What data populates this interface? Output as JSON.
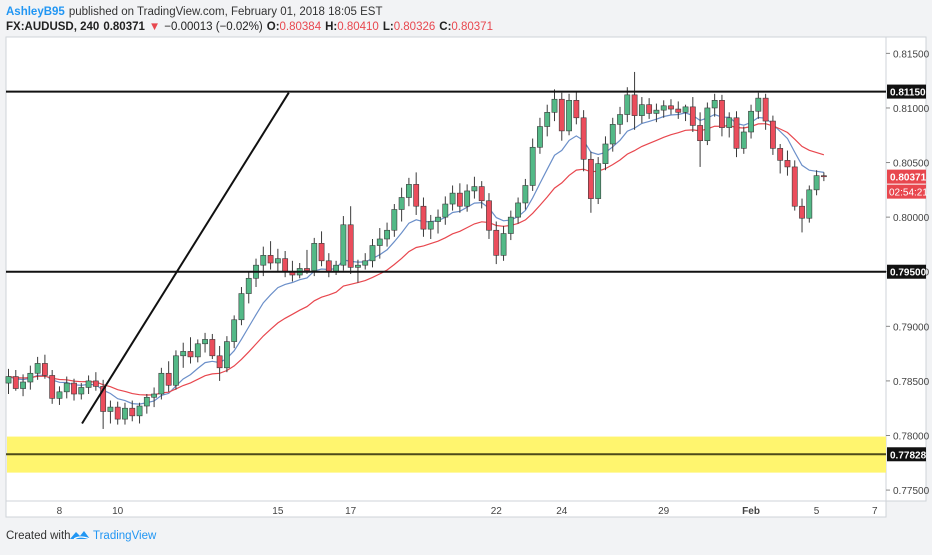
{
  "header": {
    "author": "AshleyB95",
    "published_text": "published on TradingView.com, February 01, 2018 18:05 EST",
    "symbol": "FX:AUDUSD, 240",
    "last_price": "0.80371",
    "arrow": "▼",
    "change": "−0.00013 (−0.02%)",
    "o_label": "O:",
    "o_value": "0.80384",
    "h_label": "H:",
    "h_value": "0.80410",
    "l_label": "L:",
    "l_value": "0.80326",
    "c_label": "C:",
    "c_value": "0.80371"
  },
  "footer": {
    "created_with": "Created with",
    "brand": "TradingView"
  },
  "price_labels": {
    "resistance": "0.81150",
    "current": "0.80371",
    "countdown": "02:54:21",
    "support": "0.79500",
    "zone": "0.77828"
  },
  "colors": {
    "up": "#53b987",
    "down": "#eb4d5c",
    "ma_fast": "#6b8fc9",
    "ma_slow": "#e8474e",
    "zone": "#fff56e",
    "brand": "#2196f3",
    "author": "#2196f3"
  },
  "chart_data": {
    "type": "candlestick",
    "symbol": "FX:AUDUSD",
    "interval": "240",
    "ylim": [
      0.774,
      0.8165
    ],
    "y_ticks": [
      "0.81500",
      "0.81000",
      "0.80500",
      "0.80000",
      "0.79500",
      "0.79000",
      "0.78500",
      "0.78000",
      "0.77500"
    ],
    "x_ticks": [
      "8",
      "10",
      "15",
      "17",
      "22",
      "24",
      "29",
      "Feb",
      "5",
      "7"
    ],
    "horizontal_levels": [
      0.8115,
      0.795,
      0.77828
    ],
    "demand_zone": [
      0.7766,
      0.7799
    ],
    "trendline": [
      {
        "x": 10.1,
        "y": 0.7811
      },
      {
        "x": 38.5,
        "y": 0.8114
      }
    ],
    "ohlc": [
      [
        0.7848,
        0.7861,
        0.7838,
        0.7854
      ],
      [
        0.7854,
        0.786,
        0.7841,
        0.7843
      ],
      [
        0.7843,
        0.7856,
        0.7836,
        0.7849
      ],
      [
        0.7849,
        0.7864,
        0.7842,
        0.7857
      ],
      [
        0.7857,
        0.7872,
        0.7851,
        0.7866
      ],
      [
        0.7866,
        0.7874,
        0.7852,
        0.7855
      ],
      [
        0.7855,
        0.786,
        0.7829,
        0.7834
      ],
      [
        0.7834,
        0.7845,
        0.7828,
        0.784
      ],
      [
        0.784,
        0.7854,
        0.7834,
        0.7848
      ],
      [
        0.7848,
        0.7852,
        0.7832,
        0.7838
      ],
      [
        0.7838,
        0.7848,
        0.7833,
        0.7844
      ],
      [
        0.7844,
        0.7855,
        0.7838,
        0.785
      ],
      [
        0.785,
        0.7858,
        0.7841,
        0.7845
      ],
      [
        0.7845,
        0.7851,
        0.7806,
        0.7822
      ],
      [
        0.7822,
        0.7832,
        0.7811,
        0.7826
      ],
      [
        0.7826,
        0.7831,
        0.781,
        0.7815
      ],
      [
        0.7815,
        0.783,
        0.781,
        0.7825
      ],
      [
        0.7825,
        0.7832,
        0.7813,
        0.7818
      ],
      [
        0.7818,
        0.783,
        0.7811,
        0.7827
      ],
      [
        0.7827,
        0.7838,
        0.782,
        0.7835
      ],
      [
        0.7835,
        0.7844,
        0.7826,
        0.7838
      ],
      [
        0.7838,
        0.7862,
        0.7833,
        0.7857
      ],
      [
        0.7857,
        0.7868,
        0.784,
        0.7846
      ],
      [
        0.7846,
        0.7878,
        0.7842,
        0.7873
      ],
      [
        0.7873,
        0.7885,
        0.7862,
        0.7877
      ],
      [
        0.7877,
        0.789,
        0.7866,
        0.7872
      ],
      [
        0.7872,
        0.7888,
        0.7867,
        0.7884
      ],
      [
        0.7884,
        0.7894,
        0.7876,
        0.7888
      ],
      [
        0.7888,
        0.7893,
        0.787,
        0.7873
      ],
      [
        0.7873,
        0.7882,
        0.785,
        0.7862
      ],
      [
        0.7862,
        0.7891,
        0.7858,
        0.7886
      ],
      [
        0.7886,
        0.791,
        0.788,
        0.7906
      ],
      [
        0.7906,
        0.7936,
        0.7901,
        0.793
      ],
      [
        0.793,
        0.795,
        0.7921,
        0.7944
      ],
      [
        0.7944,
        0.7962,
        0.7936,
        0.7956
      ],
      [
        0.7956,
        0.7973,
        0.7946,
        0.7965
      ],
      [
        0.7965,
        0.7978,
        0.7952,
        0.7958
      ],
      [
        0.7958,
        0.7971,
        0.795,
        0.7962
      ],
      [
        0.7962,
        0.7969,
        0.7945,
        0.795
      ],
      [
        0.795,
        0.796,
        0.7941,
        0.7947
      ],
      [
        0.7947,
        0.7958,
        0.7944,
        0.7953
      ],
      [
        0.7953,
        0.797,
        0.7948,
        0.7951
      ],
      [
        0.7951,
        0.7981,
        0.7946,
        0.7976
      ],
      [
        0.7976,
        0.7987,
        0.7955,
        0.796
      ],
      [
        0.796,
        0.7967,
        0.7945,
        0.795
      ],
      [
        0.795,
        0.796,
        0.7947,
        0.7956
      ],
      [
        0.7956,
        0.8001,
        0.7951,
        0.7993
      ],
      [
        0.7993,
        0.801,
        0.7948,
        0.7954
      ],
      [
        0.7954,
        0.7961,
        0.794,
        0.7956
      ],
      [
        0.7956,
        0.7967,
        0.7952,
        0.796
      ],
      [
        0.796,
        0.798,
        0.7954,
        0.7974
      ],
      [
        0.7974,
        0.799,
        0.7962,
        0.798
      ],
      [
        0.798,
        0.7995,
        0.7973,
        0.7988
      ],
      [
        0.7988,
        0.8012,
        0.7982,
        0.8007
      ],
      [
        0.8007,
        0.8027,
        0.7996,
        0.8018
      ],
      [
        0.8018,
        0.8036,
        0.801,
        0.803
      ],
      [
        0.803,
        0.8041,
        0.8002,
        0.801
      ],
      [
        0.801,
        0.8018,
        0.7982,
        0.7989
      ],
      [
        0.7989,
        0.8002,
        0.798,
        0.7996
      ],
      [
        0.7996,
        0.8007,
        0.7985,
        0.8
      ],
      [
        0.8,
        0.8019,
        0.7993,
        0.8012
      ],
      [
        0.8012,
        0.8029,
        0.8006,
        0.8022
      ],
      [
        0.8022,
        0.8031,
        0.8004,
        0.801
      ],
      [
        0.801,
        0.803,
        0.8005,
        0.8024
      ],
      [
        0.8024,
        0.8037,
        0.8017,
        0.8028
      ],
      [
        0.8028,
        0.8033,
        0.8008,
        0.8015
      ],
      [
        0.8015,
        0.8022,
        0.798,
        0.7988
      ],
      [
        0.7988,
        0.7996,
        0.7957,
        0.7965
      ],
      [
        0.7965,
        0.7992,
        0.796,
        0.7985
      ],
      [
        0.7985,
        0.8006,
        0.7979,
        0.8
      ],
      [
        0.8,
        0.8018,
        0.7994,
        0.8013
      ],
      [
        0.8013,
        0.8035,
        0.8007,
        0.8029
      ],
      [
        0.8029,
        0.8072,
        0.8024,
        0.8064
      ],
      [
        0.8064,
        0.8091,
        0.8058,
        0.8083
      ],
      [
        0.8083,
        0.8103,
        0.8074,
        0.8096
      ],
      [
        0.8096,
        0.8117,
        0.8088,
        0.8108
      ],
      [
        0.8108,
        0.8114,
        0.807,
        0.8079
      ],
      [
        0.8079,
        0.8113,
        0.8075,
        0.8107
      ],
      [
        0.8107,
        0.8115,
        0.8085,
        0.8091
      ],
      [
        0.8091,
        0.8098,
        0.8042,
        0.8053
      ],
      [
        0.8053,
        0.806,
        0.8004,
        0.8017
      ],
      [
        0.8017,
        0.8055,
        0.8012,
        0.8049
      ],
      [
        0.8049,
        0.8074,
        0.8043,
        0.8067
      ],
      [
        0.8067,
        0.8091,
        0.806,
        0.8085
      ],
      [
        0.8085,
        0.8101,
        0.8076,
        0.8094
      ],
      [
        0.8094,
        0.8119,
        0.8087,
        0.8112
      ],
      [
        0.8112,
        0.8133,
        0.808,
        0.8093
      ],
      [
        0.8093,
        0.811,
        0.8086,
        0.8103
      ],
      [
        0.8103,
        0.8109,
        0.809,
        0.8095
      ],
      [
        0.8095,
        0.8104,
        0.8087,
        0.8098
      ],
      [
        0.8098,
        0.8107,
        0.8091,
        0.8102
      ],
      [
        0.8102,
        0.8108,
        0.8094,
        0.8099
      ],
      [
        0.8099,
        0.8106,
        0.809,
        0.8096
      ],
      [
        0.8096,
        0.8103,
        0.8088,
        0.8101
      ],
      [
        0.8101,
        0.811,
        0.8078,
        0.8084
      ],
      [
        0.8084,
        0.8096,
        0.8046,
        0.807
      ],
      [
        0.807,
        0.8105,
        0.8066,
        0.81
      ],
      [
        0.81,
        0.8113,
        0.8092,
        0.8107
      ],
      [
        0.8107,
        0.8112,
        0.8074,
        0.8082
      ],
      [
        0.8082,
        0.8096,
        0.8073,
        0.8091
      ],
      [
        0.8091,
        0.8097,
        0.8055,
        0.8063
      ],
      [
        0.8063,
        0.8083,
        0.8058,
        0.8078
      ],
      [
        0.8078,
        0.8103,
        0.8072,
        0.8097
      ],
      [
        0.8097,
        0.8114,
        0.809,
        0.8109
      ],
      [
        0.8109,
        0.8113,
        0.808,
        0.8088
      ],
      [
        0.8088,
        0.8093,
        0.8057,
        0.8063
      ],
      [
        0.8063,
        0.8067,
        0.804,
        0.8052
      ],
      [
        0.8052,
        0.8061,
        0.8038,
        0.8046
      ],
      [
        0.8046,
        0.8052,
        0.8006,
        0.801
      ],
      [
        0.801,
        0.8017,
        0.7986,
        0.7999
      ],
      [
        0.7999,
        0.8029,
        0.7995,
        0.8025
      ],
      [
        0.8025,
        0.8043,
        0.802,
        0.8038
      ],
      [
        0.8038,
        0.8041,
        0.8033,
        0.8037
      ]
    ],
    "x_tick_bars": [
      7,
      15,
      37,
      47,
      67,
      76,
      90,
      102,
      111,
      119
    ]
  }
}
